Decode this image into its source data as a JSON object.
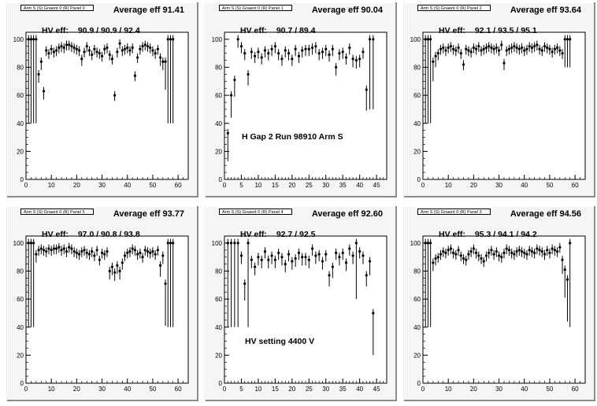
{
  "panels": [
    {
      "id": "p0",
      "tab_label": "Arm S (S) Gnaent 0 (R) Panel 0",
      "avg_label": "Average eff",
      "avg_value": "91.41",
      "hv_label": "HV eff:",
      "hv_values": "90.9 / 90.9 / 92.4",
      "note": "",
      "chart_data": {
        "type": "scatter",
        "xlim": [
          0,
          64
        ],
        "ylim": [
          0,
          105
        ],
        "xticks": [
          0,
          10,
          20,
          30,
          40,
          50,
          60
        ],
        "yticks": [
          0,
          20,
          40,
          60,
          80,
          100
        ],
        "x": [
          1,
          2,
          3,
          4,
          5,
          6,
          7,
          8,
          9,
          10,
          11,
          12,
          13,
          14,
          15,
          16,
          17,
          18,
          19,
          20,
          21,
          22,
          23,
          24,
          25,
          26,
          27,
          28,
          29,
          30,
          31,
          32,
          33,
          34,
          35,
          36,
          37,
          38,
          39,
          40,
          41,
          42,
          43,
          44,
          45,
          46,
          47,
          48,
          49,
          50,
          51,
          52,
          53,
          54,
          55,
          56,
          57,
          58
        ],
        "y": [
          100,
          100,
          100,
          100,
          75,
          84,
          63,
          92,
          90,
          93,
          91,
          92,
          94,
          95,
          94,
          96,
          96,
          95,
          94,
          93,
          92,
          86,
          91,
          95,
          92,
          89,
          93,
          91,
          90,
          88,
          93,
          94,
          89,
          86,
          60,
          91,
          97,
          92,
          93,
          94,
          92,
          94,
          74,
          87,
          93,
          95,
          96,
          95,
          94,
          92,
          90,
          93,
          87,
          84,
          84,
          100,
          100,
          100
        ],
        "err": [
          60,
          60,
          60,
          60,
          6,
          6,
          6,
          4,
          4,
          4,
          4,
          4,
          4,
          4,
          4,
          4,
          4,
          4,
          4,
          4,
          4,
          5,
          4,
          4,
          4,
          4,
          4,
          4,
          4,
          4,
          4,
          4,
          4,
          4,
          4,
          4,
          4,
          4,
          4,
          4,
          4,
          4,
          4,
          4,
          4,
          4,
          4,
          4,
          4,
          4,
          4,
          4,
          6,
          6,
          20,
          60,
          60,
          60
        ]
      }
    },
    {
      "id": "p1",
      "tab_label": "Arm S (S) Gnaent 0 (R) Panel 1",
      "avg_label": "Average eff",
      "avg_value": "90.04",
      "hv_label": "HV eff:",
      "hv_values": "90.7 / 89.4",
      "note": "H Gap 2 Run 98910 Arm S",
      "chart_data": {
        "type": "scatter",
        "xlim": [
          0,
          48
        ],
        "ylim": [
          0,
          105
        ],
        "xticks": [
          0,
          5,
          10,
          15,
          20,
          25,
          30,
          35,
          40,
          45
        ],
        "yticks": [
          0,
          20,
          40,
          60,
          80,
          100
        ],
        "x": [
          1,
          2,
          3,
          4,
          5,
          6,
          7,
          8,
          9,
          10,
          11,
          12,
          13,
          14,
          15,
          16,
          17,
          18,
          19,
          20,
          21,
          22,
          23,
          24,
          25,
          26,
          27,
          28,
          29,
          30,
          31,
          32,
          33,
          34,
          35,
          36,
          37,
          38,
          39,
          40,
          41,
          42,
          43,
          44
        ],
        "y": [
          33,
          60,
          71,
          100,
          95,
          90,
          75,
          91,
          88,
          91,
          87,
          92,
          90,
          93,
          95,
          90,
          86,
          92,
          90,
          86,
          93,
          88,
          92,
          93,
          93,
          94,
          95,
          90,
          91,
          93,
          89,
          93,
          80,
          90,
          91,
          87,
          94,
          86,
          85,
          86,
          91,
          64,
          100,
          100
        ],
        "err": [
          20,
          16,
          12,
          6,
          5,
          5,
          8,
          5,
          5,
          5,
          5,
          5,
          5,
          5,
          5,
          5,
          5,
          5,
          5,
          5,
          5,
          5,
          5,
          5,
          5,
          5,
          5,
          5,
          5,
          5,
          5,
          5,
          6,
          5,
          5,
          5,
          5,
          6,
          6,
          6,
          5,
          15,
          50,
          50
        ]
      }
    },
    {
      "id": "p2",
      "tab_label": "Arm S (S) Gnaent 0 (R) Panel 2",
      "avg_label": "Average eff",
      "avg_value": "93.64",
      "hv_label": "HV eff:",
      "hv_values": "92.1 / 93.5 / 95.1",
      "note": "",
      "chart_data": {
        "type": "scatter",
        "xlim": [
          0,
          64
        ],
        "ylim": [
          0,
          105
        ],
        "xticks": [
          0,
          10,
          20,
          30,
          40,
          50,
          60
        ],
        "yticks": [
          0,
          20,
          40,
          60,
          80,
          100
        ],
        "x": [
          1,
          2,
          3,
          4,
          5,
          6,
          7,
          8,
          9,
          10,
          11,
          12,
          13,
          14,
          15,
          16,
          17,
          18,
          19,
          20,
          21,
          22,
          23,
          24,
          25,
          26,
          27,
          28,
          29,
          30,
          31,
          32,
          33,
          34,
          35,
          36,
          37,
          38,
          39,
          40,
          41,
          42,
          43,
          44,
          45,
          46,
          47,
          48,
          49,
          50,
          51,
          52,
          53,
          54,
          55,
          56,
          57,
          58
        ],
        "y": [
          100,
          100,
          100,
          84,
          88,
          90,
          93,
          94,
          92,
          94,
          95,
          93,
          92,
          94,
          90,
          82,
          93,
          92,
          91,
          94,
          93,
          95,
          92,
          93,
          94,
          95,
          94,
          93,
          94,
          92,
          96,
          83,
          92,
          93,
          94,
          95,
          94,
          93,
          94,
          92,
          93,
          95,
          94,
          95,
          96,
          93,
          92,
          95,
          94,
          93,
          91,
          93,
          94,
          92,
          90,
          100,
          100,
          100
        ],
        "err": [
          60,
          60,
          60,
          14,
          8,
          5,
          4,
          4,
          4,
          4,
          4,
          4,
          4,
          4,
          4,
          4,
          4,
          4,
          4,
          4,
          4,
          4,
          4,
          4,
          4,
          4,
          4,
          4,
          4,
          4,
          4,
          5,
          4,
          4,
          4,
          4,
          4,
          4,
          4,
          4,
          4,
          4,
          4,
          4,
          4,
          4,
          4,
          4,
          4,
          4,
          4,
          4,
          4,
          4,
          4,
          20,
          20,
          20
        ]
      }
    },
    {
      "id": "p3",
      "tab_label": "Arm S (S) Gnaent 0 (R) Panel 5",
      "avg_label": "Average eff",
      "avg_value": "93.77",
      "hv_label": "HV eff:",
      "hv_values": "97.0 / 90.8 / 93.8",
      "note": "",
      "chart_data": {
        "type": "scatter",
        "xlim": [
          0,
          64
        ],
        "ylim": [
          0,
          105
        ],
        "xticks": [
          0,
          10,
          20,
          30,
          40,
          50,
          60
        ],
        "yticks": [
          0,
          20,
          40,
          60,
          80,
          100
        ],
        "x": [
          1,
          2,
          3,
          4,
          5,
          6,
          7,
          8,
          9,
          10,
          11,
          12,
          13,
          14,
          15,
          16,
          17,
          18,
          19,
          20,
          21,
          22,
          23,
          24,
          25,
          26,
          27,
          28,
          29,
          30,
          31,
          32,
          33,
          34,
          35,
          36,
          37,
          38,
          39,
          40,
          41,
          42,
          43,
          44,
          45,
          46,
          47,
          48,
          49,
          50,
          51,
          52,
          53,
          54,
          55,
          56,
          57,
          58
        ],
        "y": [
          100,
          100,
          100,
          92,
          95,
          96,
          95,
          94,
          96,
          95,
          96,
          96,
          97,
          95,
          96,
          94,
          97,
          96,
          94,
          93,
          92,
          94,
          95,
          93,
          92,
          94,
          91,
          95,
          88,
          93,
          92,
          94,
          80,
          83,
          79,
          84,
          80,
          86,
          91,
          93,
          94,
          96,
          95,
          92,
          93,
          90,
          95,
          94,
          93,
          94,
          92,
          95,
          84,
          91,
          71,
          100,
          100,
          100
        ],
        "err": [
          60,
          60,
          60,
          6,
          4,
          4,
          4,
          4,
          4,
          4,
          4,
          4,
          4,
          4,
          4,
          4,
          4,
          4,
          4,
          4,
          4,
          4,
          4,
          4,
          4,
          4,
          4,
          4,
          4,
          4,
          4,
          4,
          6,
          6,
          6,
          6,
          6,
          5,
          4,
          4,
          4,
          4,
          4,
          4,
          4,
          4,
          4,
          4,
          4,
          4,
          4,
          4,
          8,
          6,
          30,
          60,
          60,
          60
        ]
      }
    },
    {
      "id": "p4",
      "tab_label": "Arm S (S) Gnaent 0 (R) Panel 4",
      "avg_label": "Average eff",
      "avg_value": "92.60",
      "hv_label": "HV eff:",
      "hv_values": "92.7 / 92.5",
      "note": "HV setting 4400 V",
      "chart_data": {
        "type": "scatter",
        "xlim": [
          0,
          48
        ],
        "ylim": [
          0,
          105
        ],
        "xticks": [
          0,
          5,
          10,
          15,
          20,
          25,
          30,
          35,
          40,
          45
        ],
        "yticks": [
          0,
          20,
          40,
          60,
          80,
          100
        ],
        "x": [
          1,
          2,
          3,
          4,
          5,
          6,
          7,
          8,
          9,
          10,
          11,
          12,
          13,
          14,
          15,
          16,
          17,
          18,
          19,
          20,
          21,
          22,
          23,
          24,
          25,
          26,
          27,
          28,
          29,
          30,
          31,
          32,
          33,
          34,
          35,
          36,
          37,
          38,
          39,
          40,
          41,
          42,
          43,
          44
        ],
        "y": [
          100,
          100,
          100,
          100,
          91,
          71,
          100,
          88,
          83,
          90,
          88,
          94,
          88,
          91,
          88,
          93,
          90,
          85,
          92,
          87,
          89,
          93,
          90,
          90,
          88,
          96,
          91,
          92,
          87,
          92,
          77,
          83,
          93,
          90,
          93,
          86,
          96,
          91,
          100,
          94,
          91,
          77,
          87,
          50
        ],
        "err": [
          60,
          60,
          60,
          60,
          6,
          12,
          60,
          6,
          6,
          6,
          6,
          5,
          6,
          6,
          6,
          5,
          6,
          6,
          5,
          6,
          6,
          5,
          6,
          6,
          6,
          5,
          6,
          5,
          6,
          5,
          8,
          8,
          5,
          6,
          5,
          6,
          5,
          6,
          40,
          5,
          6,
          8,
          10,
          30
        ]
      }
    },
    {
      "id": "p5",
      "tab_label": "Arm S (S) Gnaent 0 (R) Panel 3",
      "avg_label": "Average eff",
      "avg_value": "94.56",
      "hv_label": "HV eff:",
      "hv_values": "95.3 / 94.1 / 94.2",
      "note": "",
      "chart_data": {
        "type": "scatter",
        "xlim": [
          0,
          64
        ],
        "ylim": [
          0,
          105
        ],
        "xticks": [
          0,
          10,
          20,
          30,
          40,
          50,
          60
        ],
        "yticks": [
          0,
          20,
          40,
          60,
          80,
          100
        ],
        "x": [
          1,
          2,
          3,
          4,
          5,
          6,
          7,
          8,
          9,
          10,
          11,
          12,
          13,
          14,
          15,
          16,
          17,
          18,
          19,
          20,
          21,
          22,
          23,
          24,
          25,
          26,
          27,
          28,
          29,
          30,
          31,
          32,
          33,
          34,
          35,
          36,
          37,
          38,
          39,
          40,
          41,
          42,
          43,
          44,
          45,
          46,
          47,
          48,
          49,
          50,
          51,
          52,
          53,
          54,
          55,
          56,
          57,
          58
        ],
        "y": [
          100,
          100,
          100,
          86,
          89,
          90,
          92,
          94,
          93,
          95,
          96,
          93,
          92,
          95,
          91,
          89,
          88,
          92,
          94,
          96,
          93,
          91,
          89,
          87,
          91,
          93,
          95,
          92,
          94,
          91,
          90,
          93,
          96,
          95,
          93,
          92,
          94,
          95,
          94,
          93,
          92,
          95,
          94,
          93,
          96,
          95,
          94,
          92,
          95,
          93,
          96,
          95,
          94,
          97,
          88,
          81,
          74,
          100
        ],
        "err": [
          60,
          60,
          60,
          6,
          5,
          4,
          4,
          4,
          4,
          4,
          4,
          4,
          4,
          4,
          4,
          4,
          4,
          4,
          4,
          4,
          4,
          4,
          4,
          4,
          4,
          4,
          4,
          4,
          4,
          4,
          4,
          4,
          4,
          4,
          4,
          4,
          4,
          4,
          4,
          4,
          4,
          4,
          4,
          4,
          4,
          4,
          4,
          4,
          4,
          4,
          4,
          4,
          4,
          4,
          10,
          20,
          30,
          60
        ]
      }
    }
  ]
}
